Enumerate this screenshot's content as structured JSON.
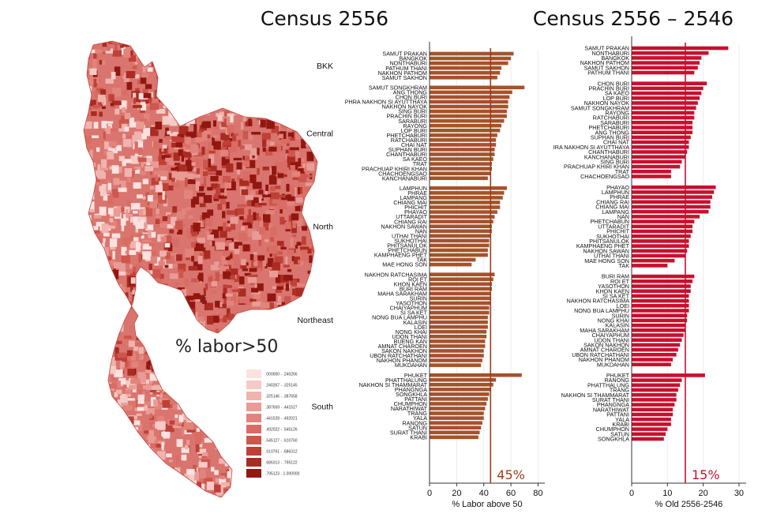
{
  "map": {
    "label": "% labor>50",
    "legend": [
      {
        "label": ".000000 - .240266",
        "color": "#fbe1df"
      },
      {
        "label": ".240267 - .325145",
        "color": "#f6cac6"
      },
      {
        "label": ".325146 - .387658",
        "color": "#f0b3ae"
      },
      {
        "label": ".387659 - .441527",
        "color": "#e99b95"
      },
      {
        "label": ".441528 - .492021",
        "color": "#e2837c"
      },
      {
        "label": ".492022 - .545126",
        "color": "#d96c64"
      },
      {
        "label": ".545127 - .610760",
        "color": "#cd564d"
      },
      {
        "label": ".610761 - .686312",
        "color": "#be4036"
      },
      {
        "label": ".686313 - .795122",
        "color": "#aa2b22"
      },
      {
        "label": ".795123 - 1.000000",
        "color": "#921711"
      }
    ]
  },
  "chart_data": [
    {
      "type": "bar",
      "orientation": "horizontal",
      "title": "Census 2556",
      "xlabel": "% Labor above 50",
      "xlim": [
        0,
        85
      ],
      "xticks": [
        0,
        20,
        40,
        60,
        80
      ],
      "color": "#a5522b",
      "reference_line": {
        "value": 45,
        "label": "45%"
      },
      "groups": [
        {
          "name": "BKK",
          "categories": [
            "SAMUT PRAKAN",
            "BANGKOK",
            "NONTHABURI",
            "PATHUM THANI",
            "NAKHON PATHOM",
            "SAMUT SAKHON"
          ],
          "values": [
            62,
            60,
            58,
            53,
            52,
            50
          ]
        },
        {
          "name": "Central",
          "categories": [
            "SAMUT SONGKHRAM",
            "ANG THONG",
            "CHON BURI",
            "PHRA NAKHON SI AYUTTHAYA",
            "NAKHON NAYOK",
            "SING BURI",
            "PRACHIN BURI",
            "SARABURI",
            "RAYONG",
            "LOP BURI",
            "PHETCHABURI",
            "RATCHABURI",
            "CHAI NAT",
            "SUPHAN BURI",
            "CHANTHABURI",
            "SA KAEO",
            "TRAT",
            "PRACHUAP KHIRI KHAN",
            "CHACHOENGSAO",
            "KANCHANABURI"
          ],
          "values": [
            70,
            61,
            59,
            58,
            58,
            57,
            57,
            55,
            53,
            52,
            50,
            49,
            49,
            48,
            48,
            47,
            46,
            46,
            45,
            43
          ]
        },
        {
          "name": "North",
          "categories": [
            "LAMPHUN",
            "PHRAE",
            "LAMPANG",
            "CHIANG MAI",
            "PHICHIT",
            "PHAYAO",
            "UTTARADIT",
            "CHIANG RAI",
            "NAKHON SAWAN",
            "NAN",
            "UTHAI THANI",
            "SUKHOTHAI",
            "PHITSANULOK",
            "PHETCHABUN",
            "KAMPHAENG PHET",
            "TAK",
            "MAE HONG SON"
          ],
          "values": [
            57,
            55,
            54,
            52,
            52,
            50,
            48,
            47,
            46,
            46,
            45,
            44,
            44,
            43,
            43,
            34,
            31
          ]
        },
        {
          "name": "Northeast",
          "categories": [
            "NAKHON RATCHASIMA",
            "ROI ET",
            "KHON KAEN",
            "BURI RAM",
            "MAHA SARAKHAM",
            "SURIN",
            "YASOTHON",
            "CHAIYAPHUM",
            "SI SA KET",
            "NONG BUA LAMPHU",
            "KALASIN",
            "LOEI",
            "NONG KHAI",
            "UDON THANI",
            "BUENG KAN",
            "AMNAT CHAROEN",
            "SAKON NAKHON",
            "UBON RATCHATHANI",
            "NAKHON PHANOM",
            "MUKDAHAN"
          ],
          "values": [
            48,
            47,
            46,
            46,
            45,
            45,
            45,
            44,
            44,
            43,
            43,
            43,
            42,
            42,
            41,
            41,
            40,
            40,
            39,
            38
          ]
        },
        {
          "name": "South",
          "categories": [
            "PHUKET",
            "PHATTHALUNG",
            "NAKHON SI THAMMARAT",
            "PHANGNGA",
            "SONGKHLA",
            "PATTANI",
            "CHUMPHON",
            "NARATHIWAT",
            "TRANG",
            "YALA",
            "RANONG",
            "SATUN",
            "SURAT THANI",
            "KRABI"
          ],
          "values": [
            68,
            49,
            47,
            45,
            44,
            43,
            42,
            41,
            40,
            40,
            39,
            38,
            37,
            36
          ]
        }
      ]
    },
    {
      "type": "bar",
      "orientation": "horizontal",
      "title": "Census 2556 – 2546",
      "xlabel": "% Old 2556-2546",
      "xlim": [
        0,
        32
      ],
      "xticks": [
        0,
        10,
        20,
        30
      ],
      "color": "#c8102e",
      "reference_line": {
        "value": 15,
        "label": "15%"
      },
      "groups": [
        {
          "name": "BKK",
          "categories": [
            "SAMUT PRAKAN",
            "NONTHABURI",
            "BANGKOK",
            "NAKHON PATHOM",
            "SAMUT SAKHON",
            "PATHUM THANI"
          ],
          "values": [
            27,
            21.5,
            19.5,
            19,
            18.5,
            17.5
          ]
        },
        {
          "name": "Central",
          "categories": [
            "CHON BURI",
            "PRACHIN BURI",
            "SA KAEO",
            "LOP BURI",
            "NAKHON NAYOK",
            "SAMUT SONGKHRAM",
            "RAYONG",
            "RATCHABURI",
            "SARABURI",
            "PHETCHABURI",
            "ANG THONG",
            "SUPHAN BURI",
            "CHAI NAT",
            "IRA NAKHON SI AYUTTHAYA",
            "CHANTHABURI",
            "KANCHANABURI",
            "SING BURI",
            "PRACHUAP KHIRI KHAN",
            "TRAT",
            "CHACHOENGSAO"
          ],
          "values": [
            21,
            20,
            19.5,
            19,
            18.5,
            18,
            17.5,
            17.5,
            17,
            17,
            17,
            16.5,
            16,
            16,
            15.5,
            15,
            14,
            13.5,
            11,
            11
          ]
        },
        {
          "name": "North",
          "categories": [
            "PHAYAO",
            "LAMPHUN",
            "PHRAE",
            "CHIANG RAI",
            "CHIANG MAI",
            "LAMPANG",
            "NAN",
            "PHETCHABUN",
            "UTTARADIT",
            "PHICHIT",
            "SUKHOTHAI",
            "PHITSANULOK",
            "KAMPHAENG PHET",
            "NAKHON SAWAN",
            "UTHAI THANI",
            "MAE HONG SON",
            "TAK"
          ],
          "values": [
            23.5,
            23,
            22.5,
            22,
            22,
            21.5,
            19,
            17.5,
            17,
            17,
            16.5,
            16,
            16,
            15.5,
            15,
            12,
            10
          ]
        },
        {
          "name": "Northeast",
          "categories": [
            "BURI RAM",
            "ROI ET",
            "YASOTHON",
            "KHON KAEN",
            "SI SA KET",
            "NAKHON RATCHASIMA",
            "LOEI",
            "NONG BUA LAMPHU",
            "SURIN",
            "NONG KHAI",
            "KALASIN",
            "MAHA SARAKHAM",
            "CHAIYAPHUM",
            "UDON THANI",
            "SAKON NAKHON",
            "AMNAT CHAROEN",
            "UBON RATCHATHANI",
            "NAKHON PHANOM",
            "MUKDAHAN"
          ],
          "values": [
            17.5,
            17,
            16.5,
            16.5,
            16,
            16,
            16,
            16,
            15.5,
            15.5,
            15,
            15,
            14.5,
            14,
            13.5,
            13,
            12.5,
            11.5,
            11
          ]
        },
        {
          "name": "South",
          "categories": [
            "PHUKET",
            "RANONG",
            "PHATTHALUNG",
            "TRANG",
            "NAKHON SI THAMMARAT",
            "SURAT THANI",
            "PHANGNGA",
            "NARATHIWAT",
            "PATTANI",
            "YALA",
            "KRABI",
            "CHUMPHON",
            "SATUN",
            "SONGKHLA"
          ],
          "values": [
            20.5,
            14,
            13.5,
            13,
            12.5,
            12.5,
            12,
            11.5,
            11.5,
            11,
            11,
            10,
            9.5,
            9
          ]
        }
      ]
    }
  ]
}
